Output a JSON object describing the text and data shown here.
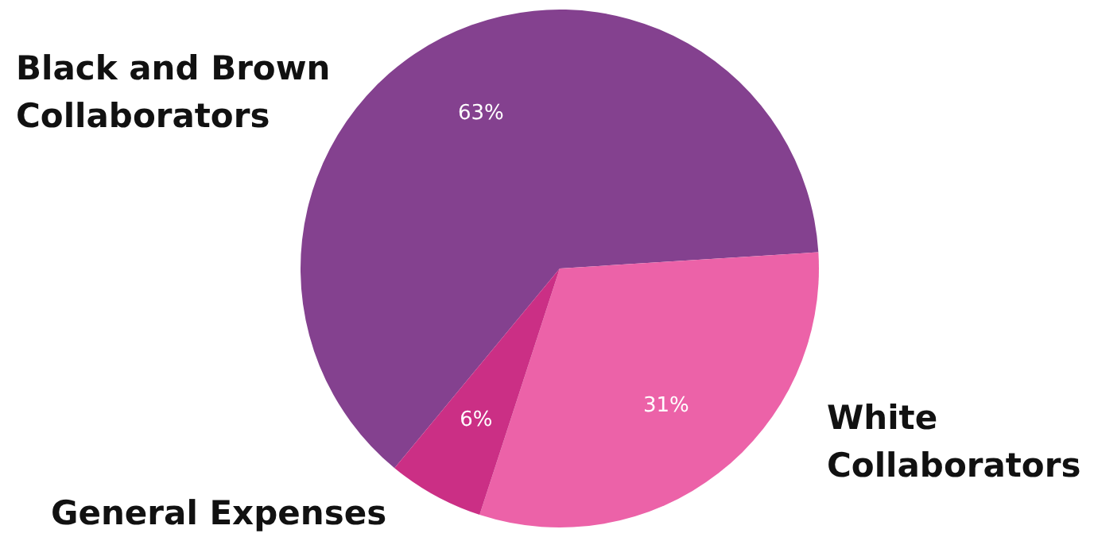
{
  "chart_data": {
    "type": "pie",
    "categories": [
      "Black and Brown Collaborators",
      "White Collaborators",
      "General Expenses"
    ],
    "values": [
      63,
      31,
      6
    ],
    "colors": [
      "#84418f",
      "#ec62a8",
      "#cb2f85"
    ],
    "value_labels": [
      "63%",
      "31%",
      "6%"
    ]
  }
}
